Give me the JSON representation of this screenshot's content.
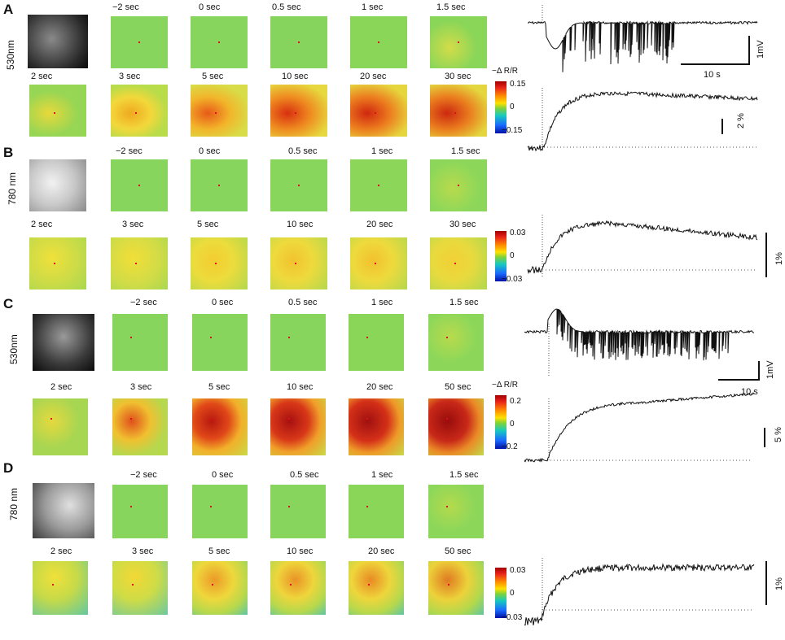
{
  "panels": [
    {
      "id": "A",
      "wavelength": "530nm",
      "row1_times": [
        "−2  sec",
        "0  sec",
        "0.5  sec",
        "1  sec",
        "1.5  sec"
      ],
      "row2_times": [
        "2  sec",
        "3  sec",
        "5  sec",
        "10  sec",
        "20  sec",
        "30  sec"
      ],
      "colorbar_title": "−Δ R/R",
      "colorbar_max": "0.15",
      "colorbar_mid": "0",
      "colorbar_min": "−0.15",
      "ephys_scale_y": "1mV",
      "ephys_scale_x": "10 s",
      "optical_scale": "2 %"
    },
    {
      "id": "B",
      "wavelength": "780 nm",
      "row1_times": [
        "−2  sec",
        "0  sec",
        "0.5  sec",
        "1  sec",
        "1.5  sec"
      ],
      "row2_times": [
        "2  sec",
        "3  sec",
        "5  sec",
        "10  sec",
        "20  sec",
        "30  sec"
      ],
      "colorbar_max": "0.03",
      "colorbar_mid": "0",
      "colorbar_min": "−0.03",
      "optical_scale": "1%"
    },
    {
      "id": "C",
      "wavelength": "530nm",
      "row1_times": [
        "−2  sec",
        "0  sec",
        "0.5  sec",
        "1  sec",
        "1.5  sec"
      ],
      "row2_times": [
        "2  sec",
        "3  sec",
        "5  sec",
        "10  sec",
        "20  sec",
        "50  sec"
      ],
      "colorbar_title": "−Δ R/R",
      "colorbar_max": "0.2",
      "colorbar_mid": "0",
      "colorbar_min": "−0.2",
      "ephys_scale_y": "1mV",
      "ephys_scale_x": "10 s",
      "optical_scale": "5 %"
    },
    {
      "id": "D",
      "wavelength": "780 nm",
      "row1_times": [
        "−2  sec",
        "0  sec",
        "0.5  sec",
        "1  sec",
        "1.5  sec"
      ],
      "row2_times": [
        "2  sec",
        "3  sec",
        "5  sec",
        "10  sec",
        "20  sec",
        "50  sec"
      ],
      "colorbar_max": "0.03",
      "colorbar_mid": "0",
      "colorbar_min": "−0.03",
      "optical_scale": "1%"
    }
  ],
  "colors": {
    "baseline_green": "#86d45a",
    "activation_yellow": "#f2e23a",
    "activation_red": "#c81818",
    "trace": "#111111"
  }
}
